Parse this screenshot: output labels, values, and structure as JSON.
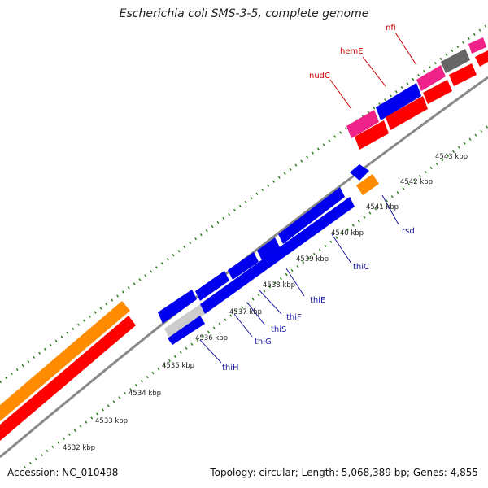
{
  "title": "Escherichia coli SMS-3-5, complete genome",
  "footer": {
    "accession": "Accession: NC_010498",
    "info": "Topology: circular; Length: 5,068,389 bp; Genes: 4,855"
  },
  "colors": {
    "cds_red": "#ff0000",
    "gene_blue": "#0000ee",
    "orange": "#ff8c00",
    "magenta": "#ee2288",
    "gray": "#666666",
    "backbone": "#888888",
    "tick_green": "#2e7d1e",
    "label_red": "#cc0000",
    "label_blue": "#1a1aa0"
  },
  "scale_labels": [
    "4532 kbp",
    "4533 kbp",
    "4534 kbp",
    "4535 kbp",
    "4536 kbp",
    "4537 kbp",
    "4538 kbp",
    "4539 kbp",
    "4540 kbp",
    "4541 kbp",
    "4542 kbp",
    "4543 kbp"
  ],
  "gene_labels": [
    {
      "name": "nfi",
      "color": "red"
    },
    {
      "name": "hemE",
      "color": "red"
    },
    {
      "name": "nudC",
      "color": "red"
    },
    {
      "name": "rsd",
      "color": "blue"
    },
    {
      "name": "thiC",
      "color": "blue"
    },
    {
      "name": "thiE",
      "color": "blue"
    },
    {
      "name": "thiF",
      "color": "blue"
    },
    {
      "name": "thiS",
      "color": "blue"
    },
    {
      "name": "thiG",
      "color": "blue"
    },
    {
      "name": "thiH",
      "color": "blue"
    }
  ]
}
